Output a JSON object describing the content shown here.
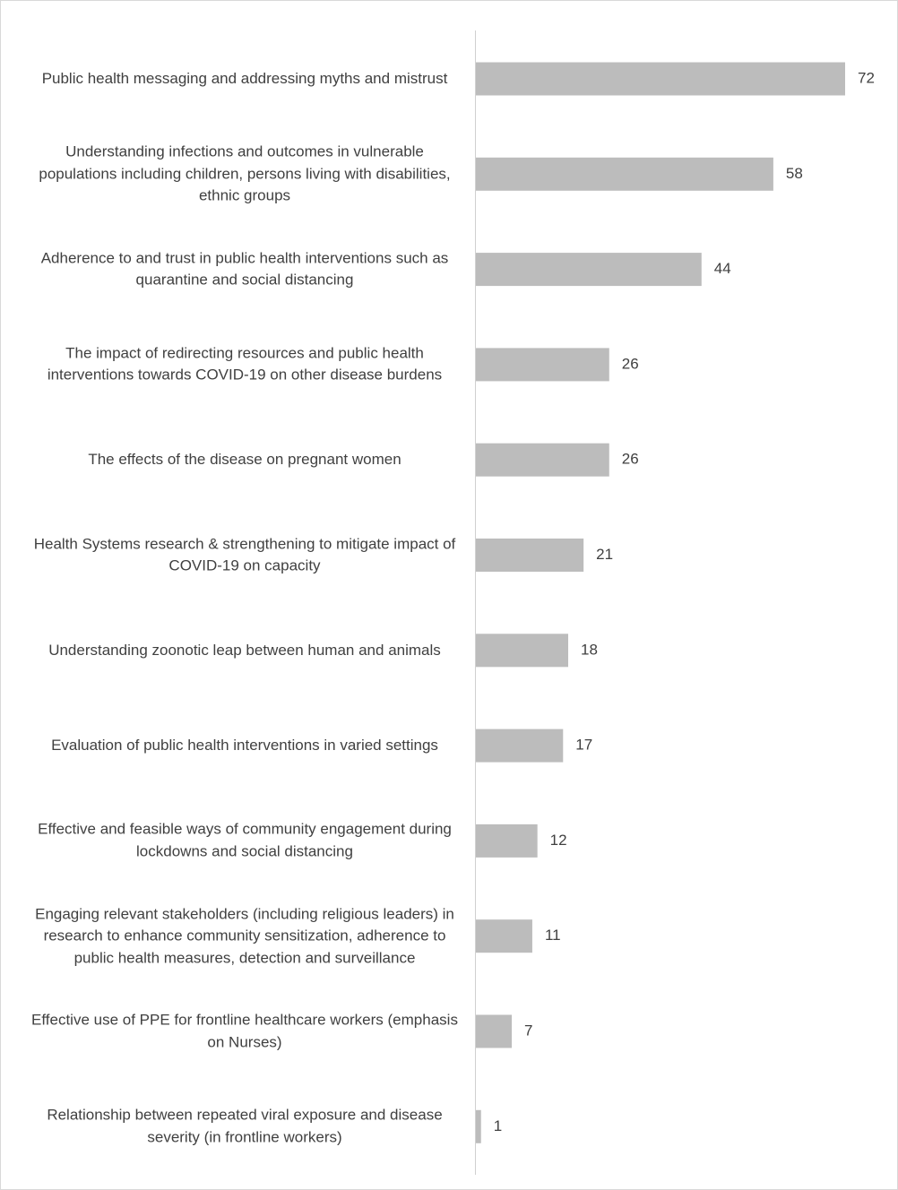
{
  "chart_data": {
    "type": "hbar",
    "categories": [
      "Public health messaging and addressing myths and mistrust",
      "Understanding infections and outcomes in vulnerable populations including children, persons living with disabilities, ethnic groups",
      "Adherence to and trust in public health interventions such as quarantine and social distancing",
      "The impact of redirecting resources and public health interventions towards COVID-19 on other disease burdens",
      "The effects of the disease on pregnant women",
      "Health Systems research & strengthening to mitigate impact of COVID-19 on capacity",
      "Understanding zoonotic leap between human and animals",
      "Evaluation of public health interventions in varied settings",
      "Effective and feasible ways of community engagement during lockdowns and social distancing",
      "Engaging relevant stakeholders (including religious leaders) in research to enhance community sensitization, adherence to public health measures, detection and surveillance",
      "Effective use of PPE for frontline healthcare workers (emphasis on Nurses)",
      "Relationship between repeated viral exposure and disease severity (in frontline workers)"
    ],
    "values": [
      72,
      58,
      44,
      26,
      26,
      21,
      18,
      17,
      12,
      11,
      7,
      1
    ],
    "color": "#bcbcbc"
  }
}
